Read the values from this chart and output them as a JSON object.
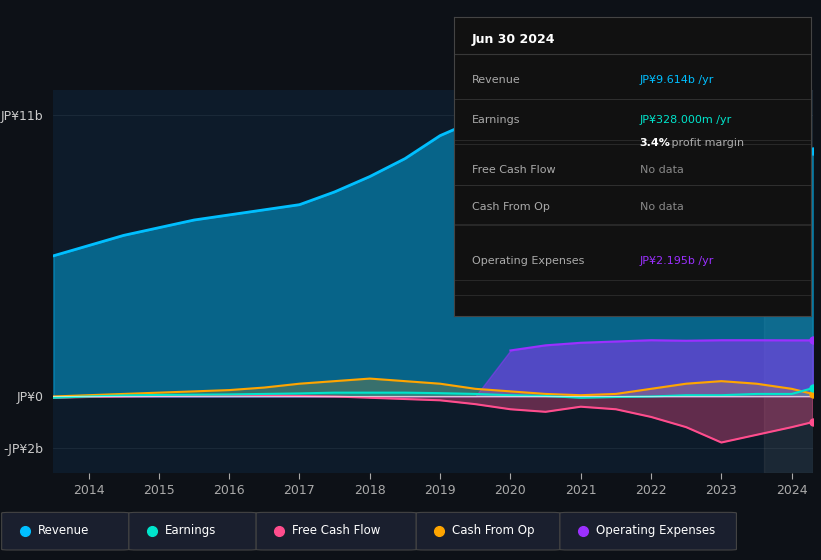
{
  "bg_color": "#0d1117",
  "chart_bg": "#0d1b2a",
  "title": "Jun 30 2024",
  "years": [
    2013.5,
    2014,
    2014.5,
    2015,
    2015.5,
    2016,
    2016.5,
    2017,
    2017.5,
    2018,
    2018.5,
    2019,
    2019.5,
    2020,
    2020.5,
    2021,
    2021.5,
    2022,
    2022.5,
    2023,
    2023.5,
    2024,
    2024.3
  ],
  "revenue": [
    5.5,
    5.9,
    6.3,
    6.6,
    6.9,
    7.1,
    7.3,
    7.5,
    8.0,
    8.6,
    9.3,
    10.2,
    10.8,
    10.4,
    9.6,
    8.6,
    8.0,
    8.2,
    8.6,
    9.2,
    9.6,
    10.0,
    9.614
  ],
  "earnings": [
    -0.05,
    0.0,
    0.04,
    0.06,
    0.07,
    0.08,
    0.1,
    0.12,
    0.15,
    0.15,
    0.15,
    0.13,
    0.1,
    0.05,
    0.02,
    -0.05,
    -0.02,
    0.0,
    0.05,
    0.05,
    0.1,
    0.1,
    0.328
  ],
  "free_cash_flow": [
    -0.05,
    -0.02,
    0.0,
    0.02,
    0.03,
    0.05,
    0.05,
    0.02,
    0.0,
    -0.05,
    -0.1,
    -0.15,
    -0.3,
    -0.5,
    -0.6,
    -0.4,
    -0.5,
    -0.8,
    -1.2,
    -1.8,
    -1.5,
    -1.2,
    -1.0
  ],
  "cash_from_op": [
    0.0,
    0.05,
    0.1,
    0.15,
    0.2,
    0.25,
    0.35,
    0.5,
    0.6,
    0.7,
    0.6,
    0.5,
    0.3,
    0.2,
    0.1,
    0.05,
    0.1,
    0.3,
    0.5,
    0.6,
    0.5,
    0.3,
    0.1
  ],
  "op_expenses": [
    0.0,
    0.0,
    0.0,
    0.0,
    0.0,
    0.0,
    0.0,
    0.0,
    0.0,
    0.0,
    0.0,
    0.0,
    0.0,
    1.8,
    2.0,
    2.1,
    2.15,
    2.2,
    2.18,
    2.2,
    2.2,
    2.195,
    2.195
  ],
  "revenue_color": "#00bfff",
  "earnings_color": "#00e5cc",
  "free_cash_flow_color": "#ff4d8d",
  "cash_from_op_color": "#ffa500",
  "op_expenses_color": "#9b30ff",
  "y0_label": "JP¥0",
  "y_top_label": "JP¥11b",
  "y_bot_label": "-JP¥2b",
  "x_ticks": [
    2014,
    2015,
    2016,
    2017,
    2018,
    2019,
    2020,
    2021,
    2022,
    2023,
    2024
  ],
  "legend_items": [
    "Revenue",
    "Earnings",
    "Free Cash Flow",
    "Cash From Op",
    "Operating Expenses"
  ],
  "legend_colors": [
    "#00bfff",
    "#00e5cc",
    "#ff4d8d",
    "#ffa500",
    "#9b30ff"
  ],
  "tooltip_title": "Jun 30 2024",
  "tooltip_rows": [
    {
      "label": "Revenue",
      "value": "JP¥9.614b /yr",
      "color": "#00bfff",
      "nodata": false
    },
    {
      "label": "Earnings",
      "value": "JP¥328.000m /yr",
      "color": "#00e5cc",
      "nodata": false
    },
    {
      "label": "Free Cash Flow",
      "value": "No data",
      "color": "#888888",
      "nodata": true
    },
    {
      "label": "Cash From Op",
      "value": "No data",
      "color": "#888888",
      "nodata": true
    },
    {
      "label": "Operating Expenses",
      "value": "JP¥2.195b /yr",
      "color": "#9b30ff",
      "nodata": false
    }
  ],
  "profit_margin_text": "3.4%",
  "profit_margin_label": " profit margin"
}
